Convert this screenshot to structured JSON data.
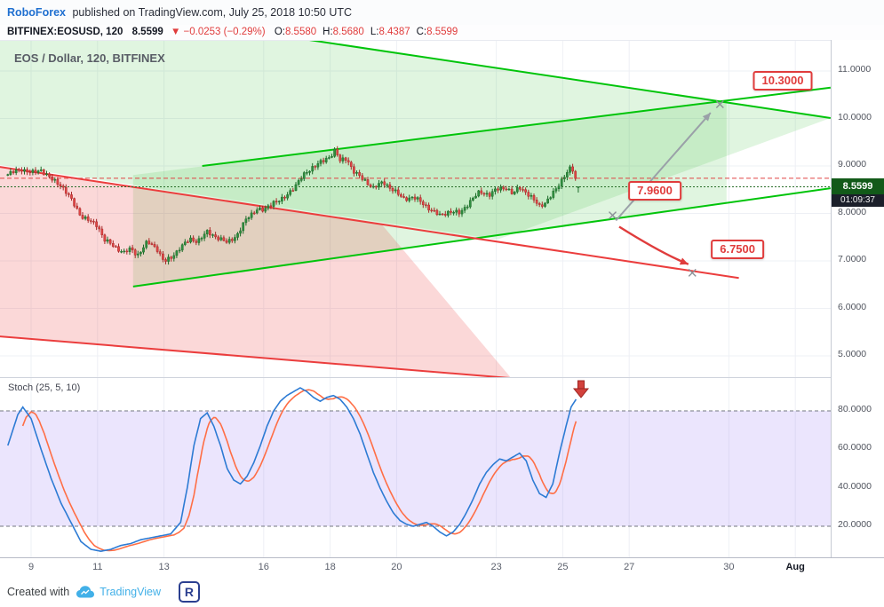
{
  "header": {
    "brand": "RoboForex",
    "published": "published on TradingView.com, July 25, 2018 10:50 UTC"
  },
  "symbol_bar": {
    "symbol": "BITFINEX:EOSUSD, 120",
    "price": "8.5599",
    "change": "▼ −0.0253 (−0.29%)",
    "ohlc": [
      {
        "label": "O:",
        "value": "8.5580"
      },
      {
        "label": "H:",
        "value": "8.5680"
      },
      {
        "label": "L:",
        "value": "8.4387"
      },
      {
        "label": "C:",
        "value": "8.5599"
      }
    ]
  },
  "price_scale": {
    "last_badge": "8.5599",
    "countdown": "01:09:37"
  },
  "footer": {
    "created_with": "Created with",
    "tradingview": "TradingView",
    "logo_glyph": "R"
  },
  "colors": {
    "accent_red": "#e03c3c",
    "brand_blue": "#1f6fd0",
    "tv_blue": "#42b0e8",
    "badge_bg": "#125a19",
    "channel_green": "#00c40a",
    "channel_red": "#eb3d3d",
    "up_candle": "#2f8f3f",
    "down_candle": "#e04545",
    "stoch_k": "#2d7bd4",
    "stoch_d": "#ff6e45"
  },
  "chart_data": [
    {
      "type": "candlestick",
      "title": "EOS / Dollar, 120, BITFINEX",
      "symbol": "BITFINEX:EOSUSD",
      "interval_minutes": 120,
      "last": {
        "open": 8.558,
        "high": 8.568,
        "low": 8.4387,
        "close": 8.5599,
        "change": -0.0253,
        "change_pct": -0.29
      },
      "y_axis": {
        "ticks": [
          5,
          6,
          7,
          8,
          9,
          10,
          11
        ],
        "decimals": 4,
        "top_price": 11.64,
        "bottom_price": 4.53
      },
      "x_axis": {
        "tick_labels": [
          "9",
          "11",
          "13",
          "16",
          "18",
          "20",
          "23",
          "25",
          "27",
          "30",
          "Aug"
        ],
        "tick_days": [
          9,
          11,
          13,
          16,
          18,
          20,
          23,
          25,
          27,
          30,
          32
        ]
      },
      "close_path": {
        "day": [
          8.3,
          8.7,
          9.0,
          9.3,
          9.6,
          9.9,
          10.2,
          10.5,
          10.8,
          11.0,
          11.2,
          11.5,
          11.8,
          12.0,
          12.2,
          12.5,
          12.8,
          13.0,
          13.2,
          13.5,
          13.8,
          14.0,
          14.3,
          14.6,
          14.9,
          15.2,
          15.5,
          15.8,
          16.0,
          16.3,
          16.6,
          16.9,
          17.2,
          17.5,
          17.8,
          18.0,
          18.15,
          18.3,
          18.5,
          18.7,
          19.0,
          19.3,
          19.6,
          19.9,
          20.2,
          20.5,
          20.8,
          21.0,
          21.3,
          21.6,
          21.9,
          22.2,
          22.5,
          22.8,
          23.0,
          23.3,
          23.5,
          23.7,
          23.9,
          24.1,
          24.3,
          24.5,
          24.8,
          25.0,
          25.2,
          25.3,
          25.45
        ],
        "price": [
          8.82,
          8.94,
          8.85,
          8.92,
          8.72,
          8.6,
          8.3,
          7.95,
          7.82,
          7.75,
          7.45,
          7.3,
          7.18,
          7.25,
          7.12,
          7.4,
          7.25,
          6.98,
          7.05,
          7.3,
          7.45,
          7.42,
          7.6,
          7.5,
          7.38,
          7.55,
          7.9,
          8.1,
          8.05,
          8.25,
          8.3,
          8.55,
          8.8,
          9.0,
          9.1,
          9.2,
          9.35,
          9.1,
          9.15,
          8.9,
          8.7,
          8.55,
          8.65,
          8.5,
          8.3,
          8.35,
          8.2,
          8.1,
          7.95,
          8.05,
          8.0,
          8.25,
          8.45,
          8.4,
          8.5,
          8.55,
          8.4,
          8.55,
          8.45,
          8.3,
          8.15,
          8.25,
          8.5,
          8.75,
          8.95,
          8.9,
          8.56
        ]
      },
      "bars": {
        "first_day": 8.3,
        "last_day": 25.45,
        "per_day": 12
      },
      "channels": {
        "lines": [
          {
            "name": "ascending-channel-upper-line",
            "color": "#00c40a",
            "from": [
              14.15,
              9.0
            ],
            "to": [
              33.06,
              10.65
            ]
          },
          {
            "name": "ascending-channel-lower-line",
            "color": "#00c40a",
            "from": [
              12.07,
              6.46
            ],
            "to": [
              33.06,
              8.53
            ]
          },
          {
            "name": "descending-band-upper-line",
            "color": "#00c40a",
            "from": [
              8.06,
              12.63
            ],
            "to": [
              33.06,
              10.01
            ]
          },
          {
            "name": "descending-channel-upper-line",
            "color": "#eb3d3d",
            "from": [
              8.06,
              8.98
            ],
            "to": [
              30.3,
              6.64
            ]
          },
          {
            "name": "descending-channel-lower-line",
            "color": "#eb3d3d",
            "from": [
              8.06,
              5.41
            ],
            "to": [
              23.45,
              4.53
            ]
          }
        ],
        "fills": [
          {
            "name": "descending-band-fill",
            "color": "rgba(64,192,64,0.16)",
            "points": [
              [
                8.06,
                12.63
              ],
              [
                33.06,
                10.01
              ],
              [
                23.04,
                7.45
              ],
              [
                8.06,
                9.02
              ]
            ]
          },
          {
            "name": "ascending-channel-fill",
            "color": "rgba(64,192,64,0.16)",
            "points": [
              [
                12.07,
                8.81
              ],
              [
                29.93,
                10.38
              ],
              [
                29.93,
                8.2
              ],
              [
                12.07,
                6.46
              ]
            ]
          },
          {
            "name": "descending-channel-fill",
            "color": "rgba(235,61,61,0.20)",
            "points": [
              [
                8.06,
                8.98
              ],
              [
                19.55,
                7.77
              ],
              [
                23.45,
                4.53
              ],
              [
                8.06,
                5.41
              ]
            ]
          }
        ]
      },
      "price_lines": [
        {
          "price": 8.5599,
          "color": "#2a6e2a",
          "dash": "2 2"
        },
        {
          "price": 8.74,
          "color": "#e04343",
          "dash": "5 3"
        }
      ],
      "targets": [
        {
          "label": "10.3000",
          "price": 10.3,
          "marker_day": 29.73,
          "label_day": 31.62,
          "label_price": 10.8
        },
        {
          "label": "7.9600",
          "price": 7.96,
          "marker_day": 26.5,
          "label_day": 27.77,
          "label_price": 8.47
        },
        {
          "label": "6.7500",
          "price": 6.75,
          "marker_day": 28.9,
          "label_day": 30.26,
          "label_price": 7.24
        }
      ],
      "arrows": [
        {
          "name": "projection-up-arrow",
          "color": "#9aa0a8",
          "from": [
            26.6,
            7.85
          ],
          "to": [
            29.45,
            10.12
          ]
        },
        {
          "name": "projection-down-arrow",
          "color": "#e03c3c",
          "from": [
            26.7,
            7.72
          ],
          "ctrl": [
            28.0,
            7.15
          ],
          "to": [
            28.78,
            6.93
          ]
        }
      ]
    },
    {
      "type": "line",
      "title": "Stoch (25, 5, 10)",
      "series": [
        {
          "name": "%K",
          "color": "#2d7bd4"
        },
        {
          "name": "%D",
          "color": "#ff6e45"
        }
      ],
      "band": {
        "upper": 80,
        "lower": 20,
        "fill": "rgba(146,110,243,0.18)"
      },
      "y_ticks": [
        80,
        60,
        40,
        20
      ],
      "k_points": {
        "day": [
          8.3,
          8.45,
          8.6,
          8.75,
          9.0,
          9.3,
          9.6,
          9.9,
          10.2,
          10.5,
          10.8,
          11.1,
          11.4,
          11.7,
          12.0,
          12.3,
          12.6,
          12.9,
          13.2,
          13.5,
          13.7,
          13.9,
          14.1,
          14.3,
          14.5,
          14.7,
          14.9,
          15.1,
          15.3,
          15.5,
          15.7,
          15.9,
          16.1,
          16.3,
          16.5,
          16.7,
          16.9,
          17.1,
          17.3,
          17.5,
          17.7,
          17.9,
          18.1,
          18.3,
          18.5,
          18.7,
          18.9,
          19.1,
          19.3,
          19.5,
          19.7,
          19.9,
          20.1,
          20.3,
          20.5,
          20.7,
          20.9,
          21.1,
          21.3,
          21.5,
          21.7,
          21.9,
          22.1,
          22.3,
          22.5,
          22.7,
          22.9,
          23.1,
          23.3,
          23.5,
          23.7,
          23.9,
          24.1,
          24.3,
          24.5,
          24.7,
          24.9,
          25.1,
          25.25,
          25.4
        ],
        "value": [
          62,
          70,
          78,
          82,
          76,
          60,
          45,
          32,
          22,
          12,
          8,
          7,
          8,
          10,
          11,
          13,
          14,
          15,
          16,
          22,
          40,
          62,
          76,
          79,
          72,
          62,
          50,
          44,
          42,
          46,
          53,
          62,
          72,
          80,
          85,
          88,
          90,
          92,
          90,
          87,
          85,
          87,
          88,
          86,
          82,
          76,
          68,
          58,
          48,
          40,
          33,
          27,
          23,
          21,
          20,
          21,
          22,
          20,
          17,
          15,
          17,
          21,
          27,
          34,
          42,
          48,
          52,
          55,
          54,
          56,
          58,
          54,
          44,
          37,
          35,
          42,
          58,
          72,
          82,
          86
        ]
      },
      "d_lags": [
        0.1,
        0.25,
        0.4
      ],
      "signal_arrow_day": 25.55
    }
  ]
}
